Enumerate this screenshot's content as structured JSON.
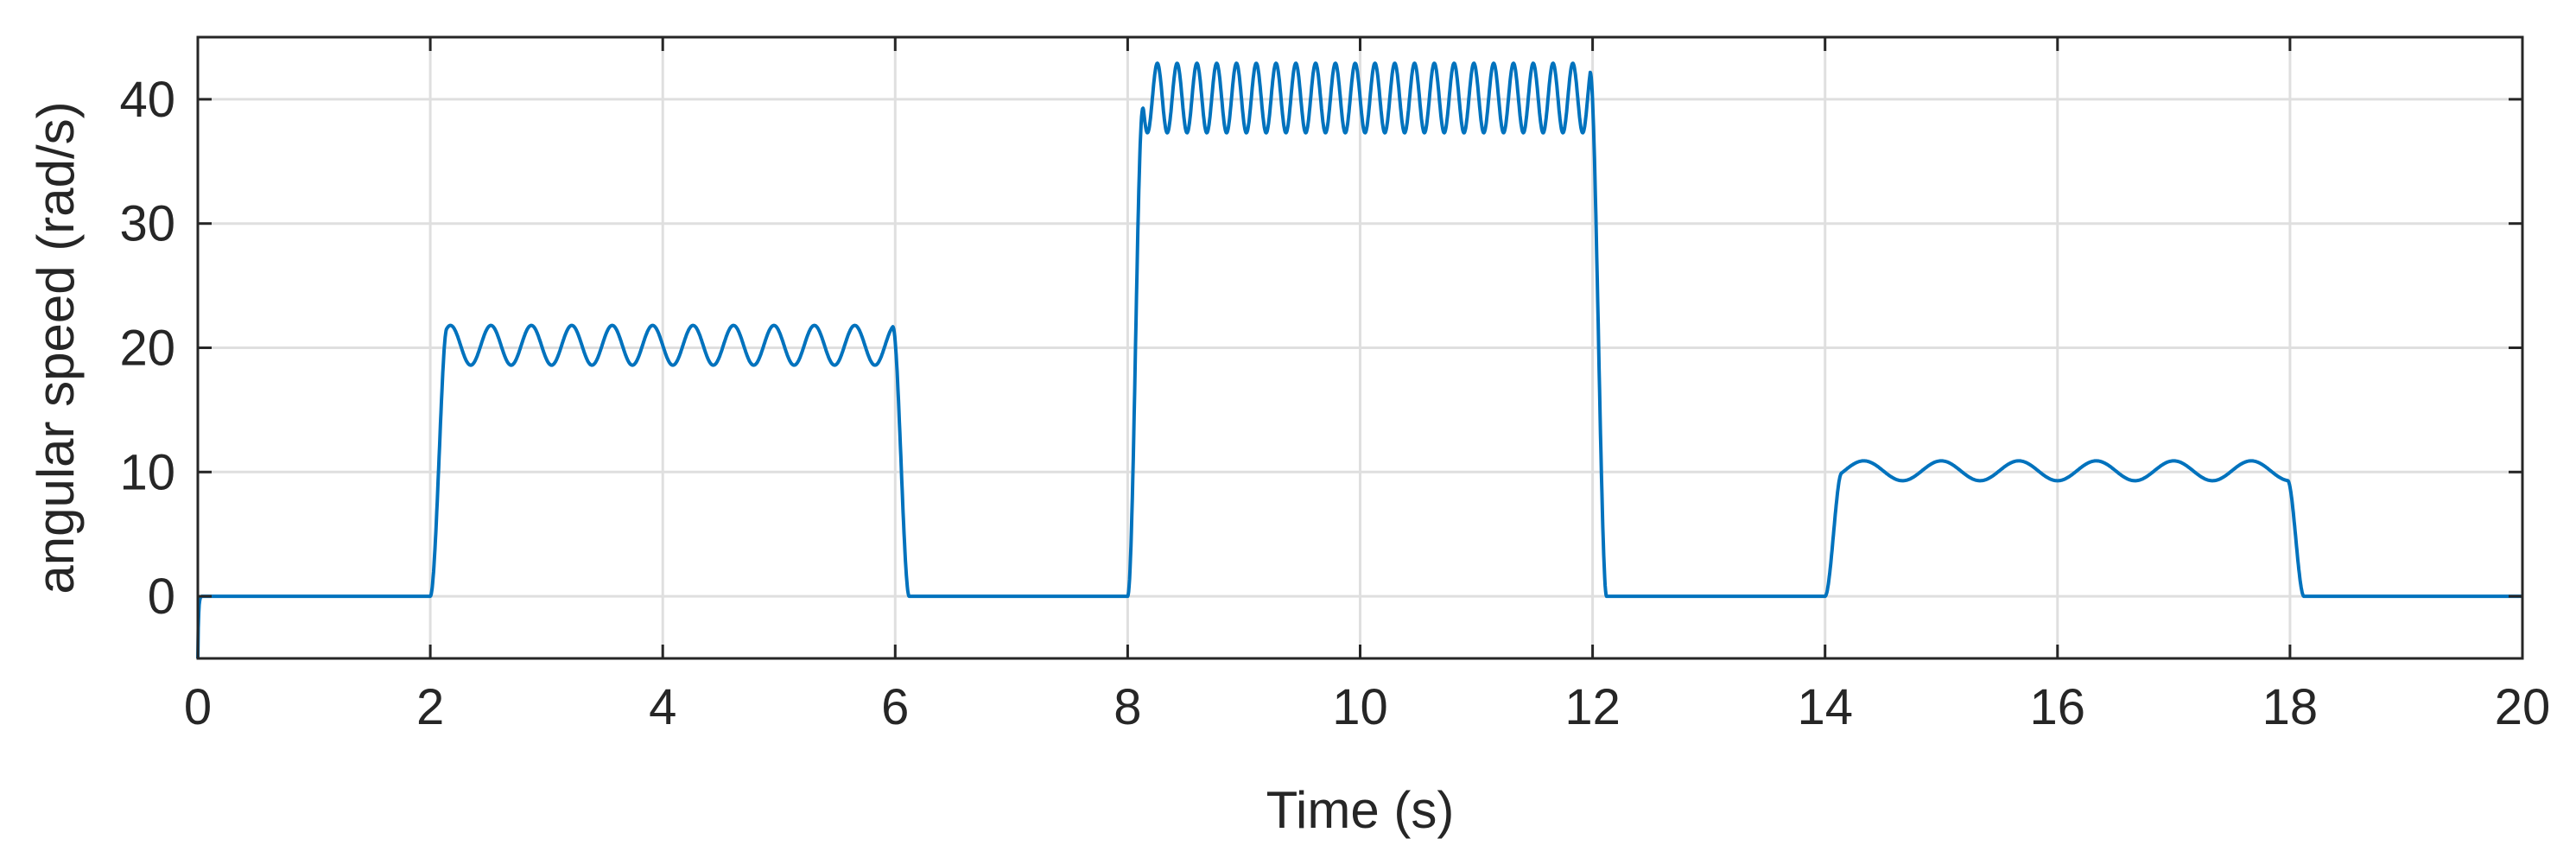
{
  "chart_data": {
    "type": "line",
    "title": "",
    "xlabel": "Time (s)",
    "ylabel": "angular speed (rad/s)",
    "xlim": [
      0,
      20
    ],
    "ylim": [
      -5,
      45
    ],
    "xticks": [
      0,
      2,
      4,
      6,
      8,
      10,
      12,
      14,
      16,
      18,
      20
    ],
    "yticks": [
      0,
      10,
      20,
      30,
      40
    ],
    "x_tick_labels": [
      "0",
      "2",
      "4",
      "6",
      "8",
      "10",
      "12",
      "14",
      "16",
      "18",
      "20"
    ],
    "y_tick_labels": [
      "0",
      "10",
      "20",
      "30",
      "40"
    ],
    "grid": true,
    "legend": "none",
    "line_color": "#0072BD",
    "series": [
      {
        "segments": [
          {
            "start": 2,
            "end": 6,
            "mean": 20.2,
            "amplitude": 1.6,
            "cycles": 11.5,
            "peak": 21.8
          },
          {
            "start": 8,
            "end": 12,
            "mean": 40.1,
            "amplitude": 2.8,
            "cycles": 23.5,
            "peak": 42.9
          },
          {
            "start": 14,
            "end": 18,
            "mean": 10.1,
            "amplitude": 0.8,
            "cycles": 6,
            "peak": 10.9
          }
        ],
        "initial_value": -5,
        "baseline": 0
      }
    ]
  }
}
